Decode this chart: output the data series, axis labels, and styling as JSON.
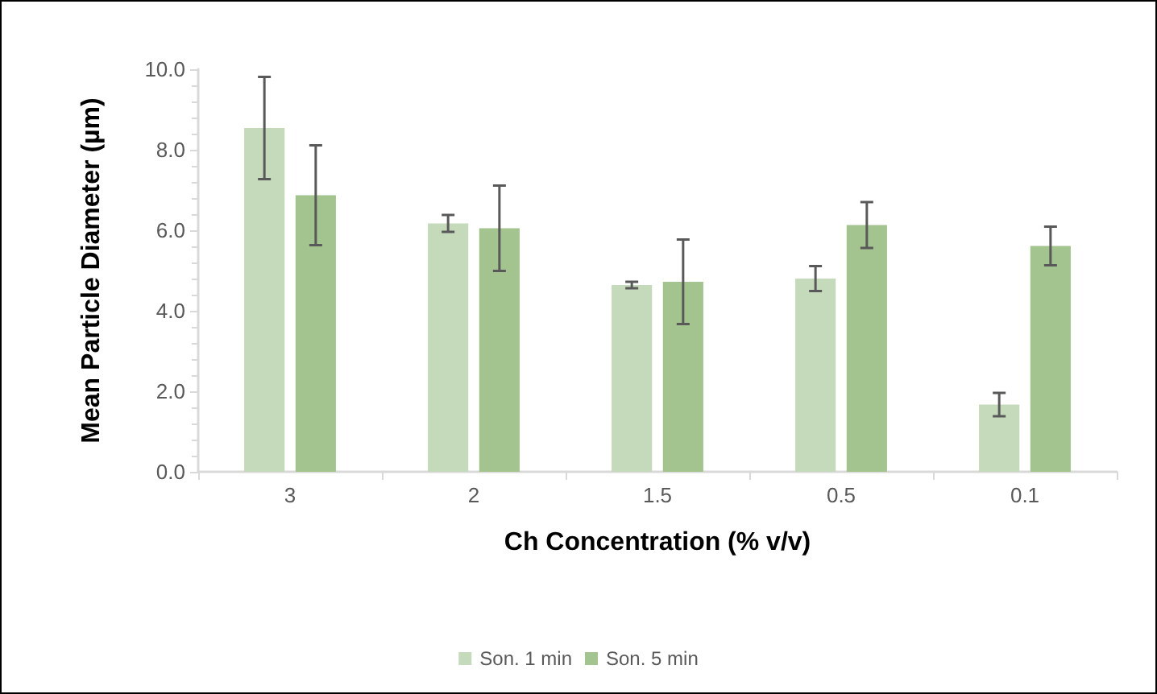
{
  "chart_data": {
    "type": "bar",
    "xlabel": "Ch Concentration (% v/v)",
    "ylabel": "Mean Particle Diameter (µm)",
    "categories": [
      "3",
      "2",
      "1.5",
      "0.5",
      "0.1"
    ],
    "series": [
      {
        "name": "Son. 1 min",
        "color": "#c5d9bb",
        "values": [
          8.54,
          6.17,
          4.64,
          4.8,
          1.67
        ],
        "errors": [
          1.27,
          0.21,
          0.08,
          0.31,
          0.29
        ]
      },
      {
        "name": "Son. 5 min",
        "color": "#a3c48f",
        "values": [
          6.87,
          6.05,
          4.72,
          6.13,
          5.61
        ],
        "errors": [
          1.24,
          1.06,
          1.05,
          0.57,
          0.48
        ]
      }
    ],
    "ylim": [
      0,
      10
    ],
    "yticks": [
      {
        "value": 0,
        "label": "0.0"
      },
      {
        "value": 2,
        "label": "2.0"
      },
      {
        "value": 4,
        "label": "4.0"
      },
      {
        "value": 6,
        "label": "6.0"
      },
      {
        "value": 8,
        "label": "8.0"
      },
      {
        "value": 10,
        "label": "10.0"
      }
    ],
    "grid": false,
    "legend": "bottom"
  }
}
